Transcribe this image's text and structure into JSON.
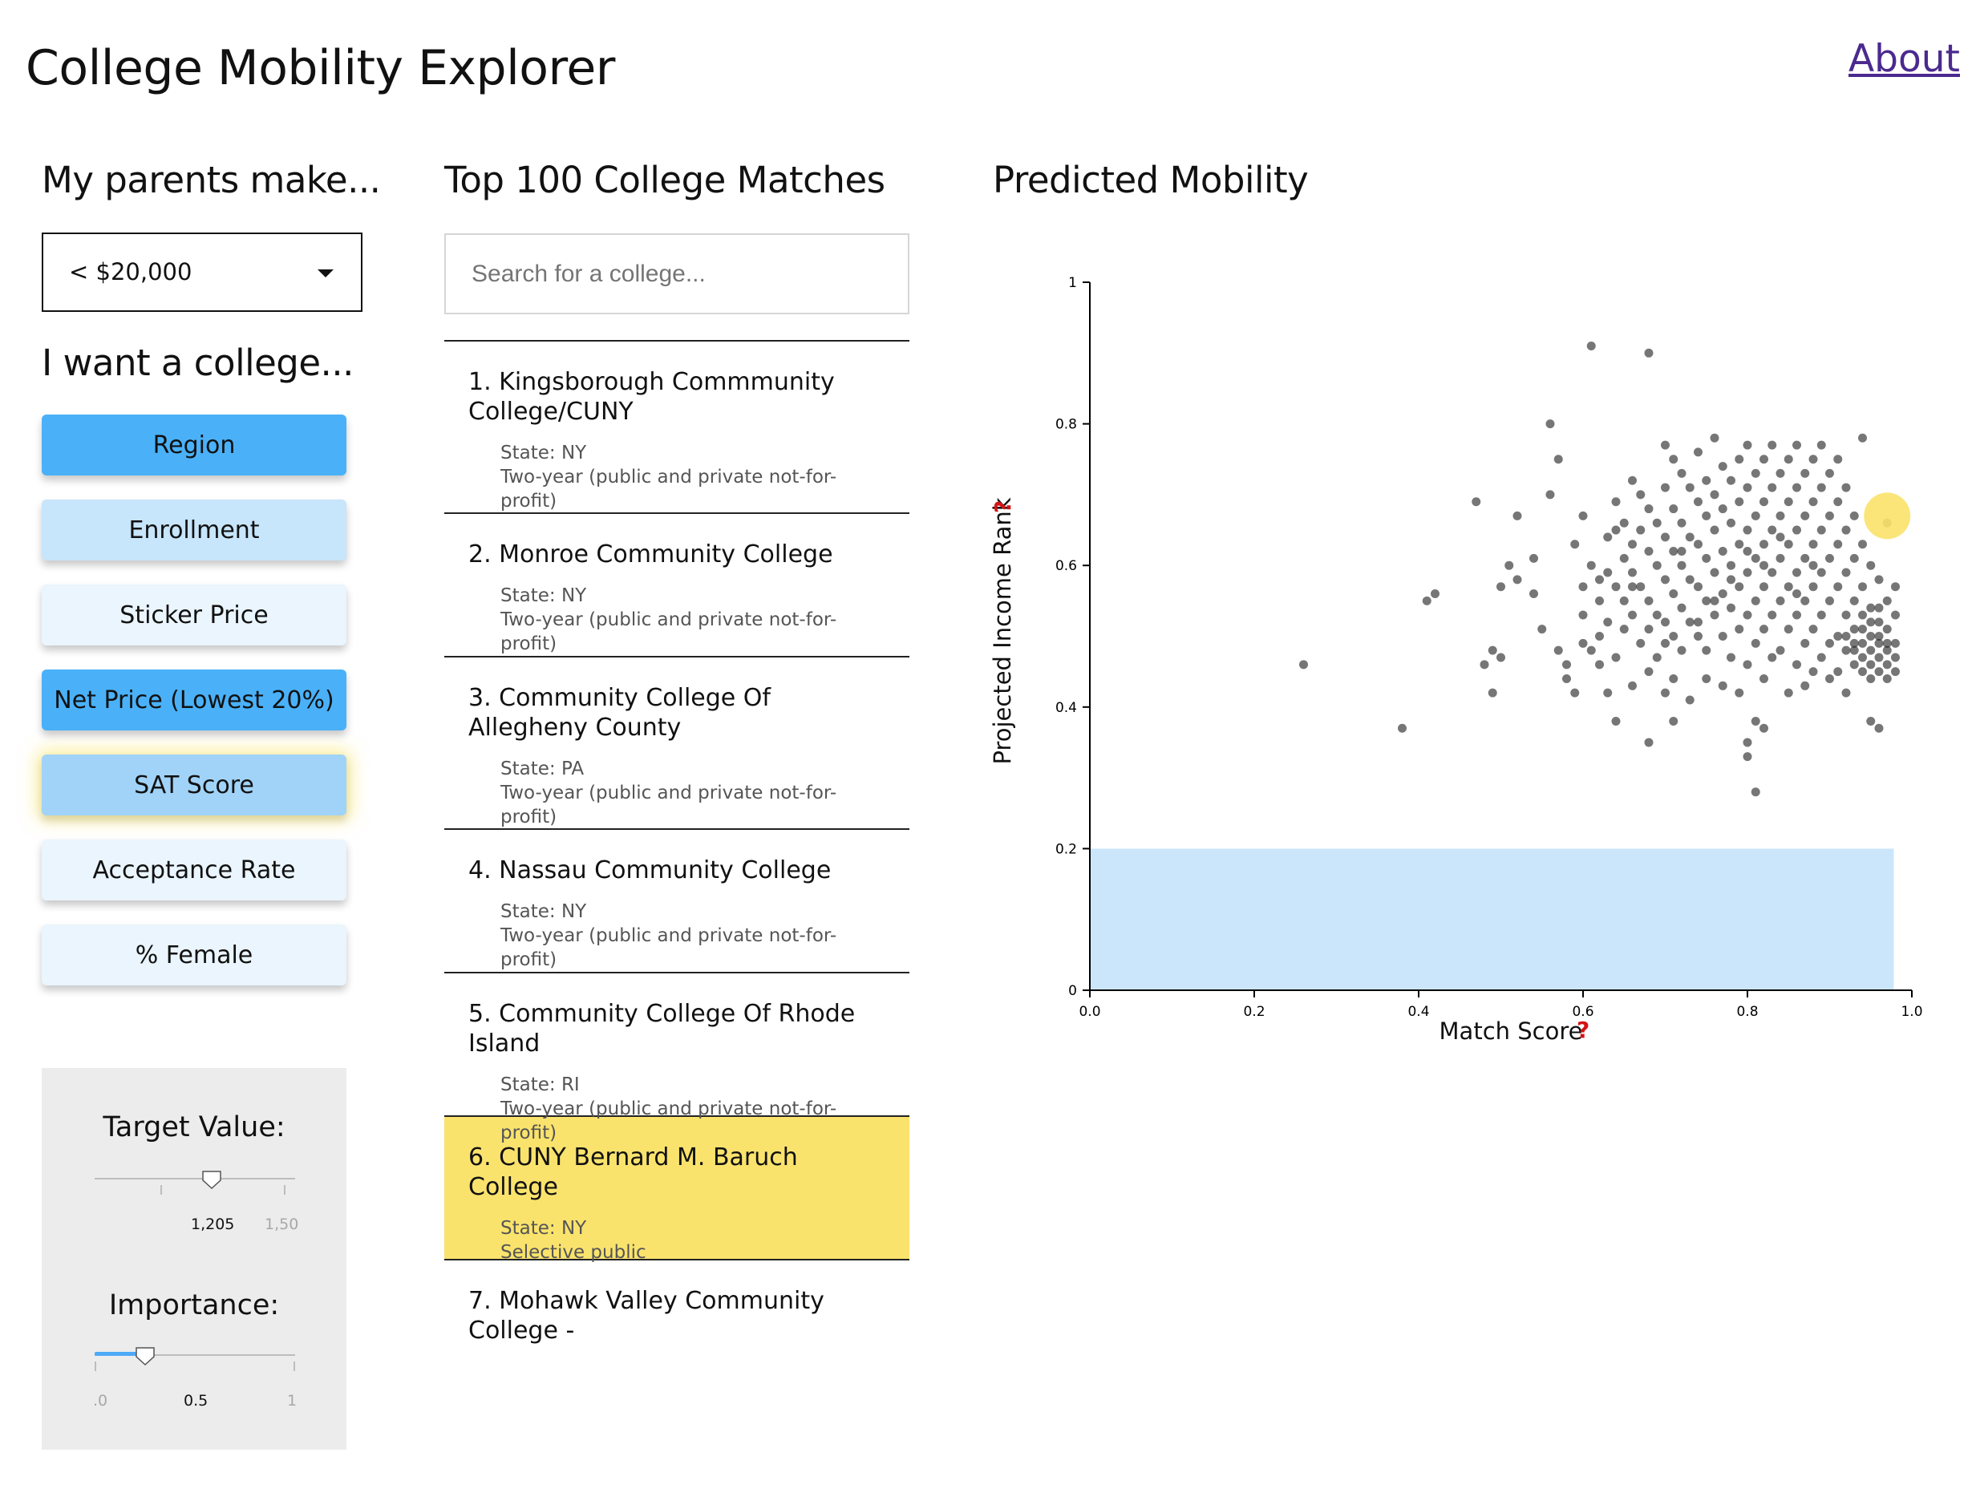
{
  "app": {
    "title": "College Mobility Explorer",
    "about_link": "About"
  },
  "income": {
    "heading": "My parents make...",
    "selected": "< $20,000"
  },
  "criteria": {
    "heading": "I want a college...",
    "buttons": [
      {
        "label": "Region",
        "color": "#4ab1f9"
      },
      {
        "label": "Enrollment",
        "color": "#c7e5fb"
      },
      {
        "label": "Sticker Price",
        "color": "#eaf5fd"
      },
      {
        "label": "Net Price (Lowest 20%)",
        "color": "#4ab1f9"
      },
      {
        "label": "SAT Score",
        "color": "#a1d3f8"
      },
      {
        "label": "Acceptance Rate",
        "color": "#eaf5fd"
      },
      {
        "label": "% Female",
        "color": "#eaf5fd"
      }
    ],
    "active_index": 4
  },
  "settings": {
    "target": {
      "label": "Target Value:",
      "value": "1,205",
      "max_label": "1,50"
    },
    "importance": {
      "label": "Importance:",
      "min_label": ".0",
      "value": "0.5",
      "max_label": "1",
      "fraction": 0.5
    }
  },
  "matches": {
    "heading": "Top 100 College Matches",
    "search_placeholder": "Search for a college...",
    "items": [
      {
        "name": "1. Kingsborough Commmunity College/CUNY",
        "state": "State: NY",
        "type": "Two-year (public and private not-for-profit)",
        "selected": false
      },
      {
        "name": "2. Monroe Community College",
        "state": "State: NY",
        "type": "Two-year (public and private not-for-profit)",
        "selected": false
      },
      {
        "name": "3. Community College Of Allegheny County",
        "state": "State: PA",
        "type": "Two-year (public and private not-for-profit)",
        "selected": false
      },
      {
        "name": "4. Nassau Community College",
        "state": "State: NY",
        "type": "Two-year (public and private not-for-profit)",
        "selected": false
      },
      {
        "name": "5. Community College Of Rhode Island",
        "state": "State: RI",
        "type": "Two-year (public and private not-for-profit)",
        "selected": false
      },
      {
        "name": "6. CUNY Bernard M. Baruch College",
        "state": "State: NY",
        "type": "Selective public",
        "selected": true
      },
      {
        "name": "7. Mohawk Valley Community College -",
        "state": "",
        "type": "",
        "selected": false
      }
    ]
  },
  "chart": {
    "heading": "Predicted Mobility",
    "help_mark": "?",
    "chart_data": {
      "type": "scatter",
      "xlabel": "Match Score",
      "ylabel": "Projected Income Rank",
      "xlim": [
        0,
        1
      ],
      "ylim": [
        0,
        1
      ],
      "x_ticks": [
        "0.0",
        "0.2",
        "0.4",
        "0.6",
        "0.8",
        "1.0"
      ],
      "y_ticks": [
        "0",
        "0.2",
        "0.4",
        "0.6",
        "0.8",
        "1"
      ],
      "income_band": {
        "y_from": 0,
        "y_to": 0.2,
        "x_from": 0,
        "x_to": 0.978,
        "color": "#cbe6fb"
      },
      "point_color": "#1a1a1a",
      "highlight": {
        "x": 0.97,
        "y": 0.67,
        "color": "#fbe26a"
      },
      "points": [
        [
          0.26,
          0.46
        ],
        [
          0.38,
          0.37
        ],
        [
          0.41,
          0.55
        ],
        [
          0.42,
          0.56
        ],
        [
          0.47,
          0.69
        ],
        [
          0.48,
          0.46
        ],
        [
          0.49,
          0.48
        ],
        [
          0.49,
          0.42
        ],
        [
          0.5,
          0.47
        ],
        [
          0.5,
          0.57
        ],
        [
          0.51,
          0.6
        ],
        [
          0.52,
          0.58
        ],
        [
          0.52,
          0.67
        ],
        [
          0.54,
          0.56
        ],
        [
          0.54,
          0.61
        ],
        [
          0.55,
          0.51
        ],
        [
          0.56,
          0.7
        ],
        [
          0.56,
          0.8
        ],
        [
          0.57,
          0.75
        ],
        [
          0.57,
          0.48
        ],
        [
          0.58,
          0.46
        ],
        [
          0.58,
          0.44
        ],
        [
          0.59,
          0.63
        ],
        [
          0.59,
          0.42
        ],
        [
          0.6,
          0.67
        ],
        [
          0.6,
          0.57
        ],
        [
          0.6,
          0.53
        ],
        [
          0.61,
          0.48
        ],
        [
          0.61,
          0.6
        ],
        [
          0.61,
          0.91
        ],
        [
          0.62,
          0.55
        ],
        [
          0.62,
          0.5
        ],
        [
          0.62,
          0.46
        ],
        [
          0.63,
          0.64
        ],
        [
          0.63,
          0.59
        ],
        [
          0.63,
          0.52
        ],
        [
          0.63,
          0.42
        ],
        [
          0.64,
          0.69
        ],
        [
          0.64,
          0.57
        ],
        [
          0.64,
          0.47
        ],
        [
          0.64,
          0.38
        ],
        [
          0.65,
          0.66
        ],
        [
          0.65,
          0.61
        ],
        [
          0.65,
          0.55
        ],
        [
          0.65,
          0.51
        ],
        [
          0.66,
          0.72
        ],
        [
          0.66,
          0.63
        ],
        [
          0.66,
          0.59
        ],
        [
          0.66,
          0.53
        ],
        [
          0.66,
          0.43
        ],
        [
          0.67,
          0.7
        ],
        [
          0.67,
          0.65
        ],
        [
          0.67,
          0.57
        ],
        [
          0.67,
          0.49
        ],
        [
          0.68,
          0.9
        ],
        [
          0.68,
          0.68
        ],
        [
          0.68,
          0.62
        ],
        [
          0.68,
          0.55
        ],
        [
          0.68,
          0.51
        ],
        [
          0.68,
          0.35
        ],
        [
          0.69,
          0.66
        ],
        [
          0.69,
          0.6
        ],
        [
          0.69,
          0.53
        ],
        [
          0.69,
          0.47
        ],
        [
          0.7,
          0.77
        ],
        [
          0.7,
          0.71
        ],
        [
          0.7,
          0.64
        ],
        [
          0.7,
          0.58
        ],
        [
          0.7,
          0.52
        ],
        [
          0.7,
          0.42
        ],
        [
          0.71,
          0.75
        ],
        [
          0.71,
          0.68
        ],
        [
          0.71,
          0.62
        ],
        [
          0.71,
          0.56
        ],
        [
          0.71,
          0.5
        ],
        [
          0.71,
          0.44
        ],
        [
          0.71,
          0.38
        ],
        [
          0.72,
          0.73
        ],
        [
          0.72,
          0.66
        ],
        [
          0.72,
          0.6
        ],
        [
          0.72,
          0.54
        ],
        [
          0.72,
          0.48
        ],
        [
          0.73,
          0.71
        ],
        [
          0.73,
          0.64
        ],
        [
          0.73,
          0.58
        ],
        [
          0.73,
          0.52
        ],
        [
          0.73,
          0.41
        ],
        [
          0.74,
          0.76
        ],
        [
          0.74,
          0.69
        ],
        [
          0.74,
          0.63
        ],
        [
          0.74,
          0.57
        ],
        [
          0.74,
          0.5
        ],
        [
          0.75,
          0.72
        ],
        [
          0.75,
          0.67
        ],
        [
          0.75,
          0.61
        ],
        [
          0.75,
          0.55
        ],
        [
          0.75,
          0.48
        ],
        [
          0.75,
          0.44
        ],
        [
          0.76,
          0.78
        ],
        [
          0.76,
          0.7
        ],
        [
          0.76,
          0.65
        ],
        [
          0.76,
          0.59
        ],
        [
          0.76,
          0.53
        ],
        [
          0.77,
          0.74
        ],
        [
          0.77,
          0.68
        ],
        [
          0.77,
          0.62
        ],
        [
          0.77,
          0.56
        ],
        [
          0.77,
          0.5
        ],
        [
          0.77,
          0.43
        ],
        [
          0.78,
          0.72
        ],
        [
          0.78,
          0.66
        ],
        [
          0.78,
          0.6
        ],
        [
          0.78,
          0.54
        ],
        [
          0.78,
          0.47
        ],
        [
          0.79,
          0.75
        ],
        [
          0.79,
          0.69
        ],
        [
          0.79,
          0.63
        ],
        [
          0.79,
          0.57
        ],
        [
          0.79,
          0.51
        ],
        [
          0.79,
          0.42
        ],
        [
          0.8,
          0.77
        ],
        [
          0.8,
          0.71
        ],
        [
          0.8,
          0.65
        ],
        [
          0.8,
          0.59
        ],
        [
          0.8,
          0.53
        ],
        [
          0.8,
          0.46
        ],
        [
          0.8,
          0.35
        ],
        [
          0.8,
          0.33
        ],
        [
          0.81,
          0.73
        ],
        [
          0.81,
          0.67
        ],
        [
          0.81,
          0.61
        ],
        [
          0.81,
          0.55
        ],
        [
          0.81,
          0.49
        ],
        [
          0.81,
          0.38
        ],
        [
          0.81,
          0.28
        ],
        [
          0.82,
          0.75
        ],
        [
          0.82,
          0.69
        ],
        [
          0.82,
          0.63
        ],
        [
          0.82,
          0.57
        ],
        [
          0.82,
          0.51
        ],
        [
          0.82,
          0.44
        ],
        [
          0.82,
          0.37
        ],
        [
          0.83,
          0.77
        ],
        [
          0.83,
          0.71
        ],
        [
          0.83,
          0.65
        ],
        [
          0.83,
          0.59
        ],
        [
          0.83,
          0.53
        ],
        [
          0.83,
          0.47
        ],
        [
          0.84,
          0.73
        ],
        [
          0.84,
          0.67
        ],
        [
          0.84,
          0.61
        ],
        [
          0.84,
          0.55
        ],
        [
          0.84,
          0.48
        ],
        [
          0.85,
          0.75
        ],
        [
          0.85,
          0.69
        ],
        [
          0.85,
          0.63
        ],
        [
          0.85,
          0.57
        ],
        [
          0.85,
          0.51
        ],
        [
          0.85,
          0.42
        ],
        [
          0.86,
          0.77
        ],
        [
          0.86,
          0.71
        ],
        [
          0.86,
          0.65
        ],
        [
          0.86,
          0.59
        ],
        [
          0.86,
          0.53
        ],
        [
          0.86,
          0.46
        ],
        [
          0.87,
          0.73
        ],
        [
          0.87,
          0.67
        ],
        [
          0.87,
          0.61
        ],
        [
          0.87,
          0.55
        ],
        [
          0.87,
          0.49
        ],
        [
          0.87,
          0.43
        ],
        [
          0.88,
          0.75
        ],
        [
          0.88,
          0.69
        ],
        [
          0.88,
          0.63
        ],
        [
          0.88,
          0.57
        ],
        [
          0.88,
          0.51
        ],
        [
          0.88,
          0.45
        ],
        [
          0.89,
          0.77
        ],
        [
          0.89,
          0.71
        ],
        [
          0.89,
          0.65
        ],
        [
          0.89,
          0.59
        ],
        [
          0.89,
          0.53
        ],
        [
          0.89,
          0.47
        ],
        [
          0.9,
          0.73
        ],
        [
          0.9,
          0.67
        ],
        [
          0.9,
          0.61
        ],
        [
          0.9,
          0.55
        ],
        [
          0.9,
          0.49
        ],
        [
          0.9,
          0.44
        ],
        [
          0.91,
          0.75
        ],
        [
          0.91,
          0.69
        ],
        [
          0.91,
          0.63
        ],
        [
          0.91,
          0.57
        ],
        [
          0.91,
          0.5
        ],
        [
          0.91,
          0.45
        ],
        [
          0.92,
          0.71
        ],
        [
          0.92,
          0.65
        ],
        [
          0.92,
          0.59
        ],
        [
          0.92,
          0.53
        ],
        [
          0.92,
          0.48
        ],
        [
          0.92,
          0.42
        ],
        [
          0.93,
          0.67
        ],
        [
          0.93,
          0.61
        ],
        [
          0.93,
          0.55
        ],
        [
          0.93,
          0.49
        ],
        [
          0.93,
          0.46
        ],
        [
          0.94,
          0.78
        ],
        [
          0.94,
          0.63
        ],
        [
          0.94,
          0.57
        ],
        [
          0.94,
          0.51
        ],
        [
          0.94,
          0.47
        ],
        [
          0.94,
          0.45
        ],
        [
          0.95,
          0.6
        ],
        [
          0.95,
          0.54
        ],
        [
          0.95,
          0.5
        ],
        [
          0.95,
          0.48
        ],
        [
          0.95,
          0.46
        ],
        [
          0.95,
          0.38
        ],
        [
          0.96,
          0.58
        ],
        [
          0.96,
          0.52
        ],
        [
          0.96,
          0.49
        ],
        [
          0.96,
          0.47
        ],
        [
          0.96,
          0.45
        ],
        [
          0.96,
          0.37
        ],
        [
          0.97,
          0.55
        ],
        [
          0.97,
          0.51
        ],
        [
          0.97,
          0.48
        ],
        [
          0.97,
          0.46
        ],
        [
          0.97,
          0.44
        ],
        [
          0.97,
          0.66
        ],
        [
          0.98,
          0.53
        ],
        [
          0.98,
          0.49
        ],
        [
          0.98,
          0.47
        ],
        [
          0.98,
          0.45
        ],
        [
          0.98,
          0.57
        ],
        [
          0.93,
          0.51
        ],
        [
          0.94,
          0.49
        ],
        [
          0.95,
          0.52
        ],
        [
          0.96,
          0.5
        ],
        [
          0.93,
          0.48
        ],
        [
          0.95,
          0.44
        ],
        [
          0.97,
          0.49
        ],
        [
          0.92,
          0.5
        ],
        [
          0.94,
          0.53
        ],
        [
          0.96,
          0.54
        ],
        [
          0.66,
          0.57
        ],
        [
          0.7,
          0.49
        ],
        [
          0.74,
          0.52
        ],
        [
          0.78,
          0.58
        ],
        [
          0.82,
          0.6
        ],
        [
          0.86,
          0.56
        ],
        [
          0.72,
          0.62
        ],
        [
          0.76,
          0.55
        ],
        [
          0.8,
          0.62
        ],
        [
          0.84,
          0.64
        ],
        [
          0.88,
          0.6
        ],
        [
          0.68,
          0.45
        ],
        [
          0.62,
          0.58
        ],
        [
          0.64,
          0.65
        ],
        [
          0.6,
          0.49
        ]
      ]
    }
  }
}
